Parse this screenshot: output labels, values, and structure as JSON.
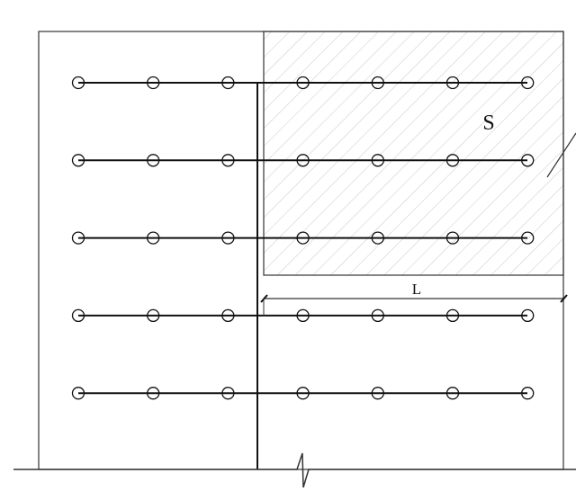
{
  "labels": {
    "area": "S",
    "dimension": "L"
  },
  "grid": {
    "rows": 5,
    "columns": 7
  },
  "colors": {
    "line": "#111111",
    "hatch": "#c8c8c8"
  }
}
